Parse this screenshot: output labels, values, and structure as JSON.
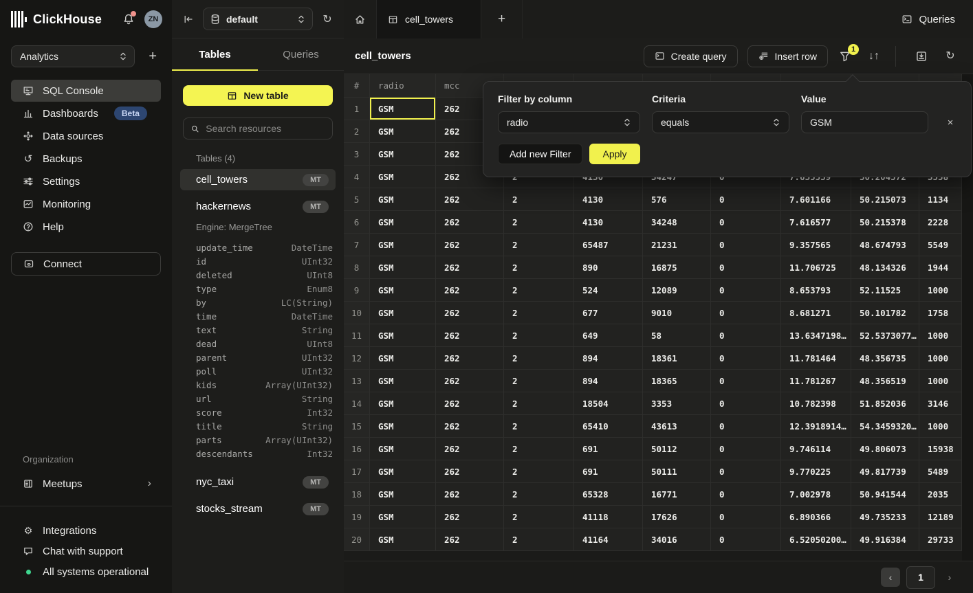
{
  "colors": {
    "accent_yellow": "#f1f14d",
    "beta_badge": "#2d4671",
    "status_green": "#3fd68f",
    "notification_red": "#f0928c",
    "selection_border": "#f1f14d"
  },
  "icons": {
    "backups": "↺",
    "refresh": "↻",
    "sort": "↓↑",
    "plus": "+",
    "close": "×",
    "page_prev": "‹",
    "page_next": "›",
    "chevron_right": "›",
    "gear": "⚙"
  },
  "sidebar": {
    "brand": "ClickHouse",
    "avatar_initials": "ZN",
    "workspace": "Analytics",
    "nav": [
      {
        "label": "SQL Console"
      },
      {
        "label": "Dashboards",
        "badge": "Beta"
      },
      {
        "label": "Data sources"
      },
      {
        "label": "Backups"
      },
      {
        "label": "Settings"
      },
      {
        "label": "Monitoring"
      },
      {
        "label": "Help"
      }
    ],
    "connect_label": "Connect",
    "organization_label": "Organization",
    "meetups_label": "Meetups",
    "footer": {
      "integrations": "Integrations",
      "chat": "Chat with support",
      "status": "All systems operational"
    }
  },
  "explorer": {
    "database": "default",
    "tabs": {
      "tables": "Tables",
      "queries": "Queries"
    },
    "new_table_label": "New table",
    "search_placeholder": "Search resources",
    "section_label": "Tables (4)",
    "tables": [
      {
        "name": "cell_towers",
        "badge": "MT"
      },
      {
        "name": "hackernews",
        "badge": "MT"
      },
      {
        "name": "nyc_taxi",
        "badge": "MT"
      },
      {
        "name": "stocks_stream",
        "badge": "MT"
      }
    ],
    "schema": {
      "engine": "Engine: MergeTree",
      "fields": [
        {
          "name": "update_time",
          "type": "DateTime"
        },
        {
          "name": "id",
          "type": "UInt32"
        },
        {
          "name": "deleted",
          "type": "UInt8"
        },
        {
          "name": "type",
          "type": "Enum8"
        },
        {
          "name": "by",
          "type": "LC(String)"
        },
        {
          "name": "time",
          "type": "DateTime"
        },
        {
          "name": "text",
          "type": "String"
        },
        {
          "name": "dead",
          "type": "UInt8"
        },
        {
          "name": "parent",
          "type": "UInt32"
        },
        {
          "name": "poll",
          "type": "UInt32"
        },
        {
          "name": "kids",
          "type": "Array(UInt32)"
        },
        {
          "name": "url",
          "type": "String"
        },
        {
          "name": "score",
          "type": "Int32"
        },
        {
          "name": "title",
          "type": "String"
        },
        {
          "name": "parts",
          "type": "Array(UInt32)"
        },
        {
          "name": "descendants",
          "type": "Int32"
        }
      ]
    }
  },
  "main": {
    "tab_title": "cell_towers",
    "queries_button": "Queries",
    "toolbar": {
      "title": "cell_towers",
      "create_query": "Create query",
      "insert_row": "Insert row",
      "filter_count": "1"
    },
    "filter_panel": {
      "column_label": "Filter by column",
      "column_value": "radio",
      "criteria_label": "Criteria",
      "criteria_value": "equals",
      "value_label": "Value",
      "value_value": "GSM",
      "add_filter": "Add new Filter",
      "apply": "Apply"
    },
    "pagination": {
      "page": "1"
    }
  },
  "grid": {
    "columns": [
      "#",
      "radio",
      "mcc",
      "",
      "",
      "",
      "",
      "",
      "",
      ""
    ],
    "rows": [
      [
        "1",
        "GSM",
        "262",
        "",
        "",
        "",
        "",
        "",
        "",
        ""
      ],
      [
        "2",
        "GSM",
        "262",
        "",
        "",
        "",
        "",
        "",
        "",
        ""
      ],
      [
        "3",
        "GSM",
        "262",
        "",
        "",
        "",
        "",
        "",
        "",
        ""
      ],
      [
        "4",
        "GSM",
        "262",
        "2",
        "4130",
        "34247",
        "0",
        "7.635539",
        "50.204572",
        "3558"
      ],
      [
        "5",
        "GSM",
        "262",
        "2",
        "4130",
        "576",
        "0",
        "7.601166",
        "50.215073",
        "1134"
      ],
      [
        "6",
        "GSM",
        "262",
        "2",
        "4130",
        "34248",
        "0",
        "7.616577",
        "50.215378",
        "2228"
      ],
      [
        "7",
        "GSM",
        "262",
        "2",
        "65487",
        "21231",
        "0",
        "9.357565",
        "48.674793",
        "5549"
      ],
      [
        "8",
        "GSM",
        "262",
        "2",
        "890",
        "16875",
        "0",
        "11.706725",
        "48.134326",
        "1944"
      ],
      [
        "9",
        "GSM",
        "262",
        "2",
        "524",
        "12089",
        "0",
        "8.653793",
        "52.11525",
        "1000"
      ],
      [
        "10",
        "GSM",
        "262",
        "2",
        "677",
        "9010",
        "0",
        "8.681271",
        "50.101782",
        "1758"
      ],
      [
        "11",
        "GSM",
        "262",
        "2",
        "649",
        "58",
        "0",
        "13.6347198…",
        "52.5373077…",
        "1000"
      ],
      [
        "12",
        "GSM",
        "262",
        "2",
        "894",
        "18361",
        "0",
        "11.781464",
        "48.356735",
        "1000"
      ],
      [
        "13",
        "GSM",
        "262",
        "2",
        "894",
        "18365",
        "0",
        "11.781267",
        "48.356519",
        "1000"
      ],
      [
        "14",
        "GSM",
        "262",
        "2",
        "18504",
        "3353",
        "0",
        "10.782398",
        "51.852036",
        "3146"
      ],
      [
        "15",
        "GSM",
        "262",
        "2",
        "65410",
        "43613",
        "0",
        "12.3918914…",
        "54.3459320…",
        "1000"
      ],
      [
        "16",
        "GSM",
        "262",
        "2",
        "691",
        "50112",
        "0",
        "9.746114",
        "49.806073",
        "15938"
      ],
      [
        "17",
        "GSM",
        "262",
        "2",
        "691",
        "50111",
        "0",
        "9.770225",
        "49.817739",
        "5489"
      ],
      [
        "18",
        "GSM",
        "262",
        "2",
        "65328",
        "16771",
        "0",
        "7.002978",
        "50.941544",
        "2035"
      ],
      [
        "19",
        "GSM",
        "262",
        "2",
        "41118",
        "17626",
        "0",
        "6.890366",
        "49.735233",
        "12189"
      ],
      [
        "20",
        "GSM",
        "262",
        "2",
        "41164",
        "34016",
        "0",
        "6.52050200…",
        "49.916384",
        "29733"
      ]
    ],
    "selected_cell": {
      "row": 0,
      "col": 1
    }
  }
}
